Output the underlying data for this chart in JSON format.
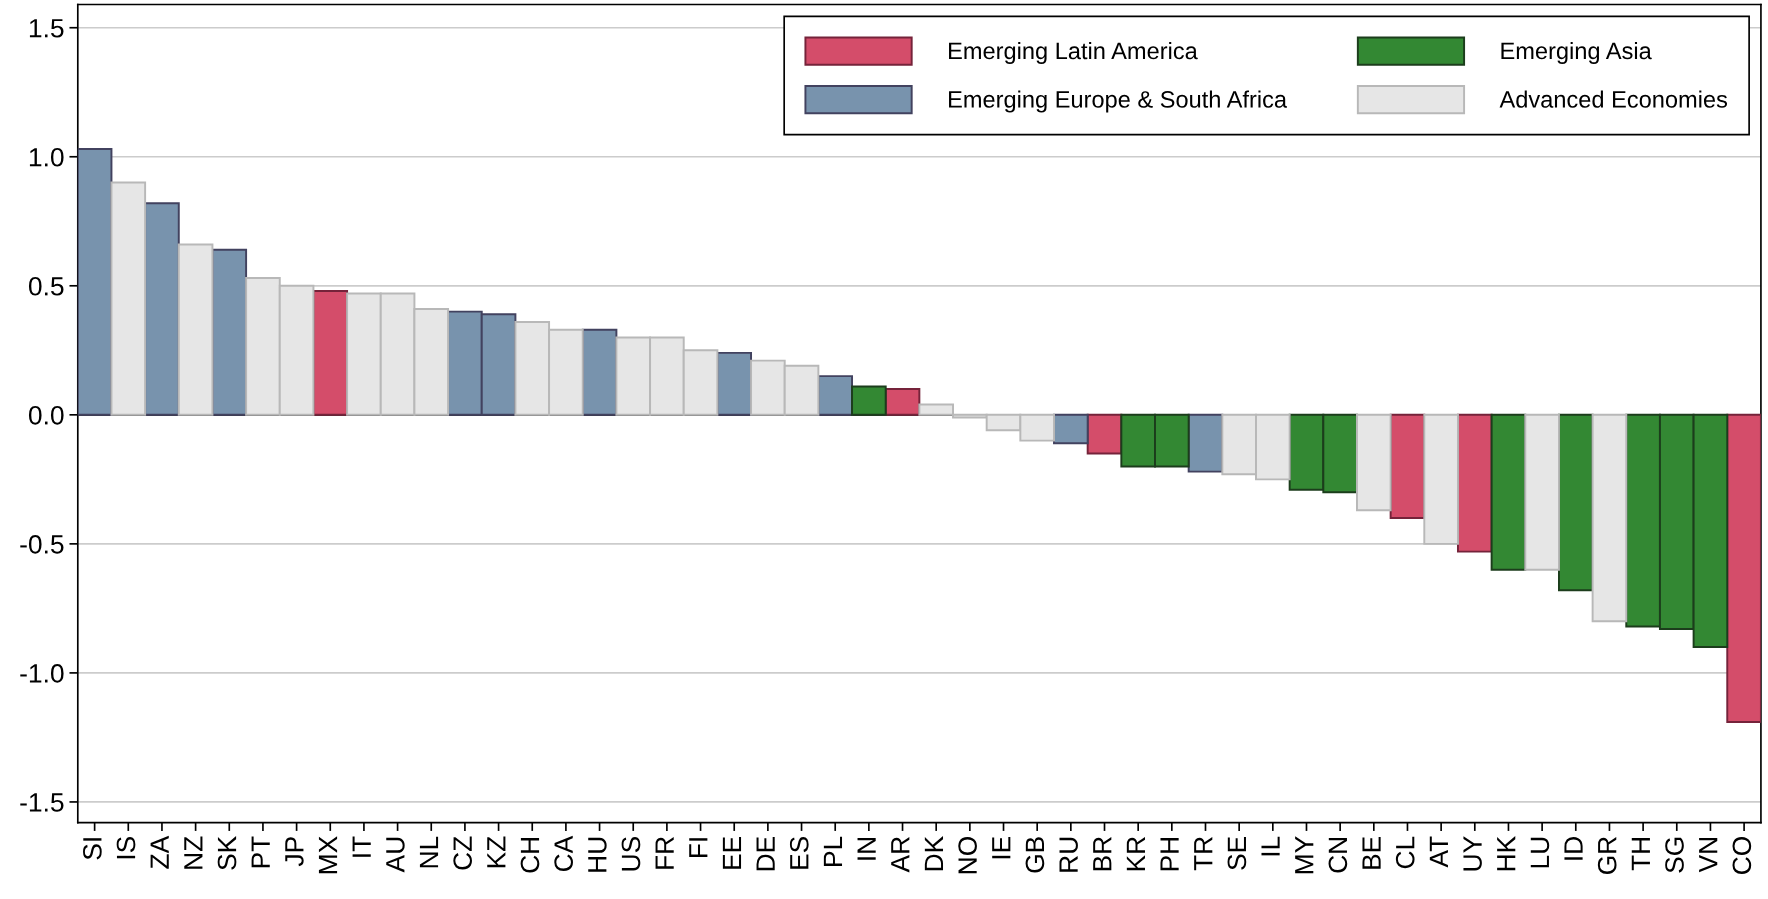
{
  "chart_data": {
    "type": "bar",
    "stacked": true,
    "categories": [
      "SI",
      "IS",
      "ZA",
      "NZ",
      "SK",
      "PT",
      "JP",
      "MX",
      "IT",
      "AU",
      "NL",
      "CZ",
      "KZ",
      "CH",
      "CA",
      "HU",
      "US",
      "FR",
      "FI",
      "EE",
      "DE",
      "ES",
      "PL",
      "IN",
      "AR",
      "DK",
      "NO",
      "IE",
      "GB",
      "RU",
      "BR",
      "KR",
      "PH",
      "TR",
      "SE",
      "IL",
      "MY",
      "CN",
      "BE",
      "CL",
      "AT",
      "UY",
      "HK",
      "LU",
      "ID",
      "GR",
      "TH",
      "SG",
      "VN",
      "CO"
    ],
    "series": [
      {
        "name": "Emerging Latin America",
        "color": "#d44d6a",
        "values": [
          null,
          null,
          null,
          null,
          null,
          null,
          null,
          0.48,
          null,
          null,
          null,
          null,
          null,
          null,
          null,
          null,
          null,
          null,
          null,
          null,
          null,
          null,
          null,
          null,
          0.1,
          null,
          null,
          null,
          null,
          null,
          -0.15,
          null,
          null,
          null,
          null,
          null,
          null,
          null,
          null,
          -0.4,
          null,
          -0.53,
          null,
          null,
          null,
          null,
          null,
          null,
          null,
          -1.19
        ]
      },
      {
        "name": "Emerging Europe & South Africa",
        "color": "#7893ad",
        "values": [
          1.03,
          null,
          0.82,
          null,
          0.64,
          null,
          null,
          null,
          null,
          null,
          null,
          0.4,
          0.39,
          null,
          null,
          0.33,
          null,
          null,
          null,
          0.24,
          null,
          null,
          0.15,
          null,
          null,
          null,
          null,
          null,
          null,
          -0.11,
          null,
          null,
          null,
          -0.22,
          null,
          null,
          null,
          null,
          null,
          null,
          null,
          null,
          null,
          null,
          null,
          null,
          null,
          null,
          null,
          null
        ]
      },
      {
        "name": "Emerging Asia",
        "color": "#338833",
        "values": [
          null,
          null,
          null,
          null,
          null,
          null,
          null,
          null,
          null,
          null,
          null,
          null,
          null,
          null,
          null,
          null,
          null,
          null,
          null,
          null,
          null,
          null,
          null,
          0.11,
          null,
          null,
          null,
          null,
          null,
          null,
          null,
          -0.2,
          -0.2,
          null,
          null,
          null,
          -0.29,
          -0.3,
          null,
          null,
          null,
          null,
          -0.6,
          null,
          -0.68,
          null,
          -0.82,
          -0.83,
          -0.9,
          null
        ]
      },
      {
        "name": "Advanced Economies",
        "color": "#e6e6e6",
        "values": [
          null,
          0.9,
          null,
          0.66,
          null,
          0.53,
          0.5,
          null,
          0.47,
          0.47,
          0.41,
          null,
          null,
          0.36,
          0.33,
          null,
          0.3,
          0.3,
          0.25,
          null,
          0.21,
          0.19,
          null,
          null,
          null,
          0.04,
          -0.01,
          -0.06,
          -0.1,
          null,
          null,
          null,
          null,
          null,
          -0.23,
          -0.25,
          null,
          null,
          -0.37,
          null,
          -0.5,
          null,
          null,
          -0.6,
          null,
          -0.8,
          null,
          null,
          null,
          null
        ]
      }
    ],
    "ylim": [
      -1.58,
      1.59
    ],
    "yticks": [
      {
        "value": -1.5,
        "label": "-1.5"
      },
      {
        "value": -1.0,
        "label": "-1.0"
      },
      {
        "value": -0.5,
        "label": "-0.5"
      },
      {
        "value": 0.0,
        "label": "0.0"
      },
      {
        "value": 0.5,
        "label": "0.5"
      },
      {
        "value": 1.0,
        "label": "1.0"
      },
      {
        "value": 1.5,
        "label": "1.5"
      }
    ],
    "grid": "y",
    "legend": "top right",
    "ref_lines": [
      {
        "axis": "y",
        "value": 0,
        "color": "#000000"
      }
    ]
  }
}
